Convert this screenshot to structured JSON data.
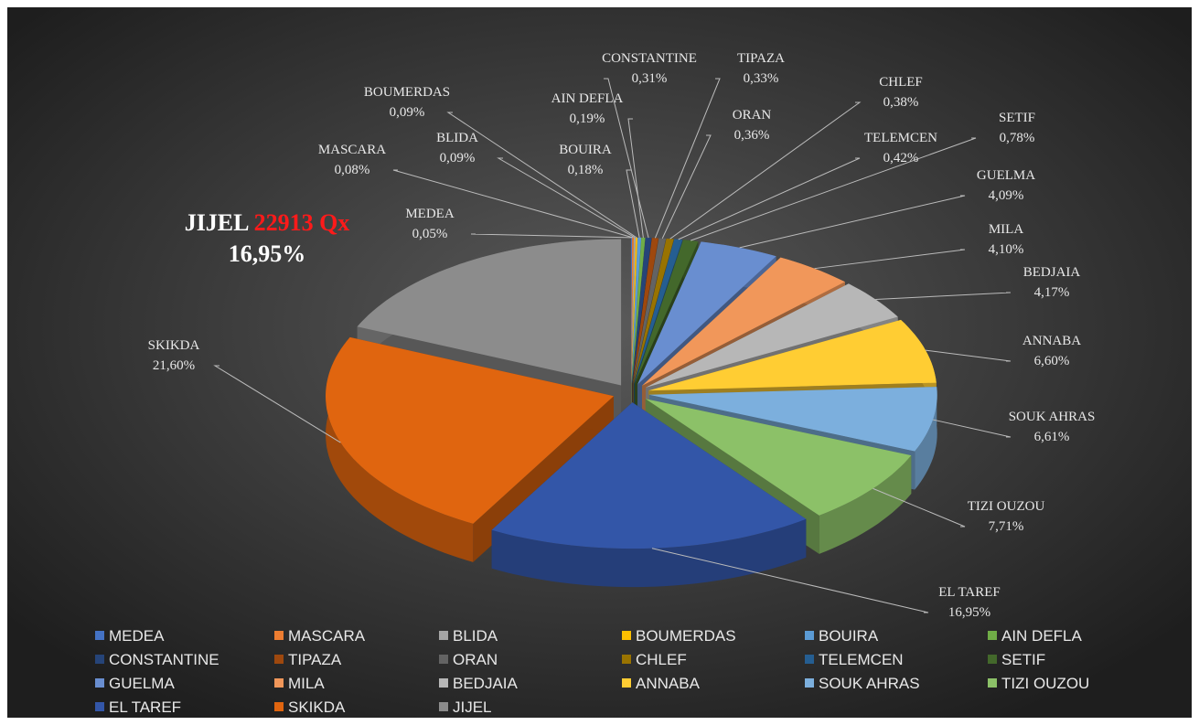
{
  "chart_data": {
    "type": "pie3d",
    "categories": [
      "MEDEA",
      "MASCARA",
      "BLIDA",
      "BOUMERDAS",
      "BOUIRA",
      "AIN DEFLA",
      "CONSTANTINE",
      "TIPAZA",
      "ORAN",
      "CHLEF",
      "TELEMCEN",
      "SETIF",
      "GUELMA",
      "MILA",
      "BEDJAIA",
      "ANNABA",
      "SOUK AHRAS",
      "TIZI OUZOU",
      "EL TAREF",
      "SKIKDA",
      "JIJEL"
    ],
    "values": [
      0.05,
      0.08,
      0.09,
      0.09,
      0.18,
      0.19,
      0.31,
      0.33,
      0.36,
      0.38,
      0.42,
      0.78,
      4.09,
      4.1,
      4.17,
      6.6,
      6.61,
      7.71,
      16.95,
      21.6,
      16.95
    ],
    "value_labels": [
      "0,05%",
      "0,08%",
      "0,09%",
      "0,09%",
      "0,18%",
      "0,19%",
      "0,31%",
      "0,33%",
      "0,36%",
      "0,38%",
      "0,42%",
      "0,78%",
      "4,09%",
      "4,10%",
      "4,17%",
      "6,60%",
      "6,61%",
      "7,71%",
      "16,95%",
      "21,60%",
      "16,95%"
    ],
    "colors": [
      "#4472c4",
      "#ed7d31",
      "#a5a5a5",
      "#ffc000",
      "#5b9bd5",
      "#70ad47",
      "#264478",
      "#9e480e",
      "#636363",
      "#997300",
      "#255e91",
      "#43682b",
      "#698ed0",
      "#f1975a",
      "#b7b7b7",
      "#ffcd33",
      "#7cafdd",
      "#8cc168",
      "#3356a8",
      "#e0650f",
      "#8c8c8c"
    ],
    "annotation": {
      "amount": "22913 Qx"
    },
    "legend": "bottom"
  }
}
